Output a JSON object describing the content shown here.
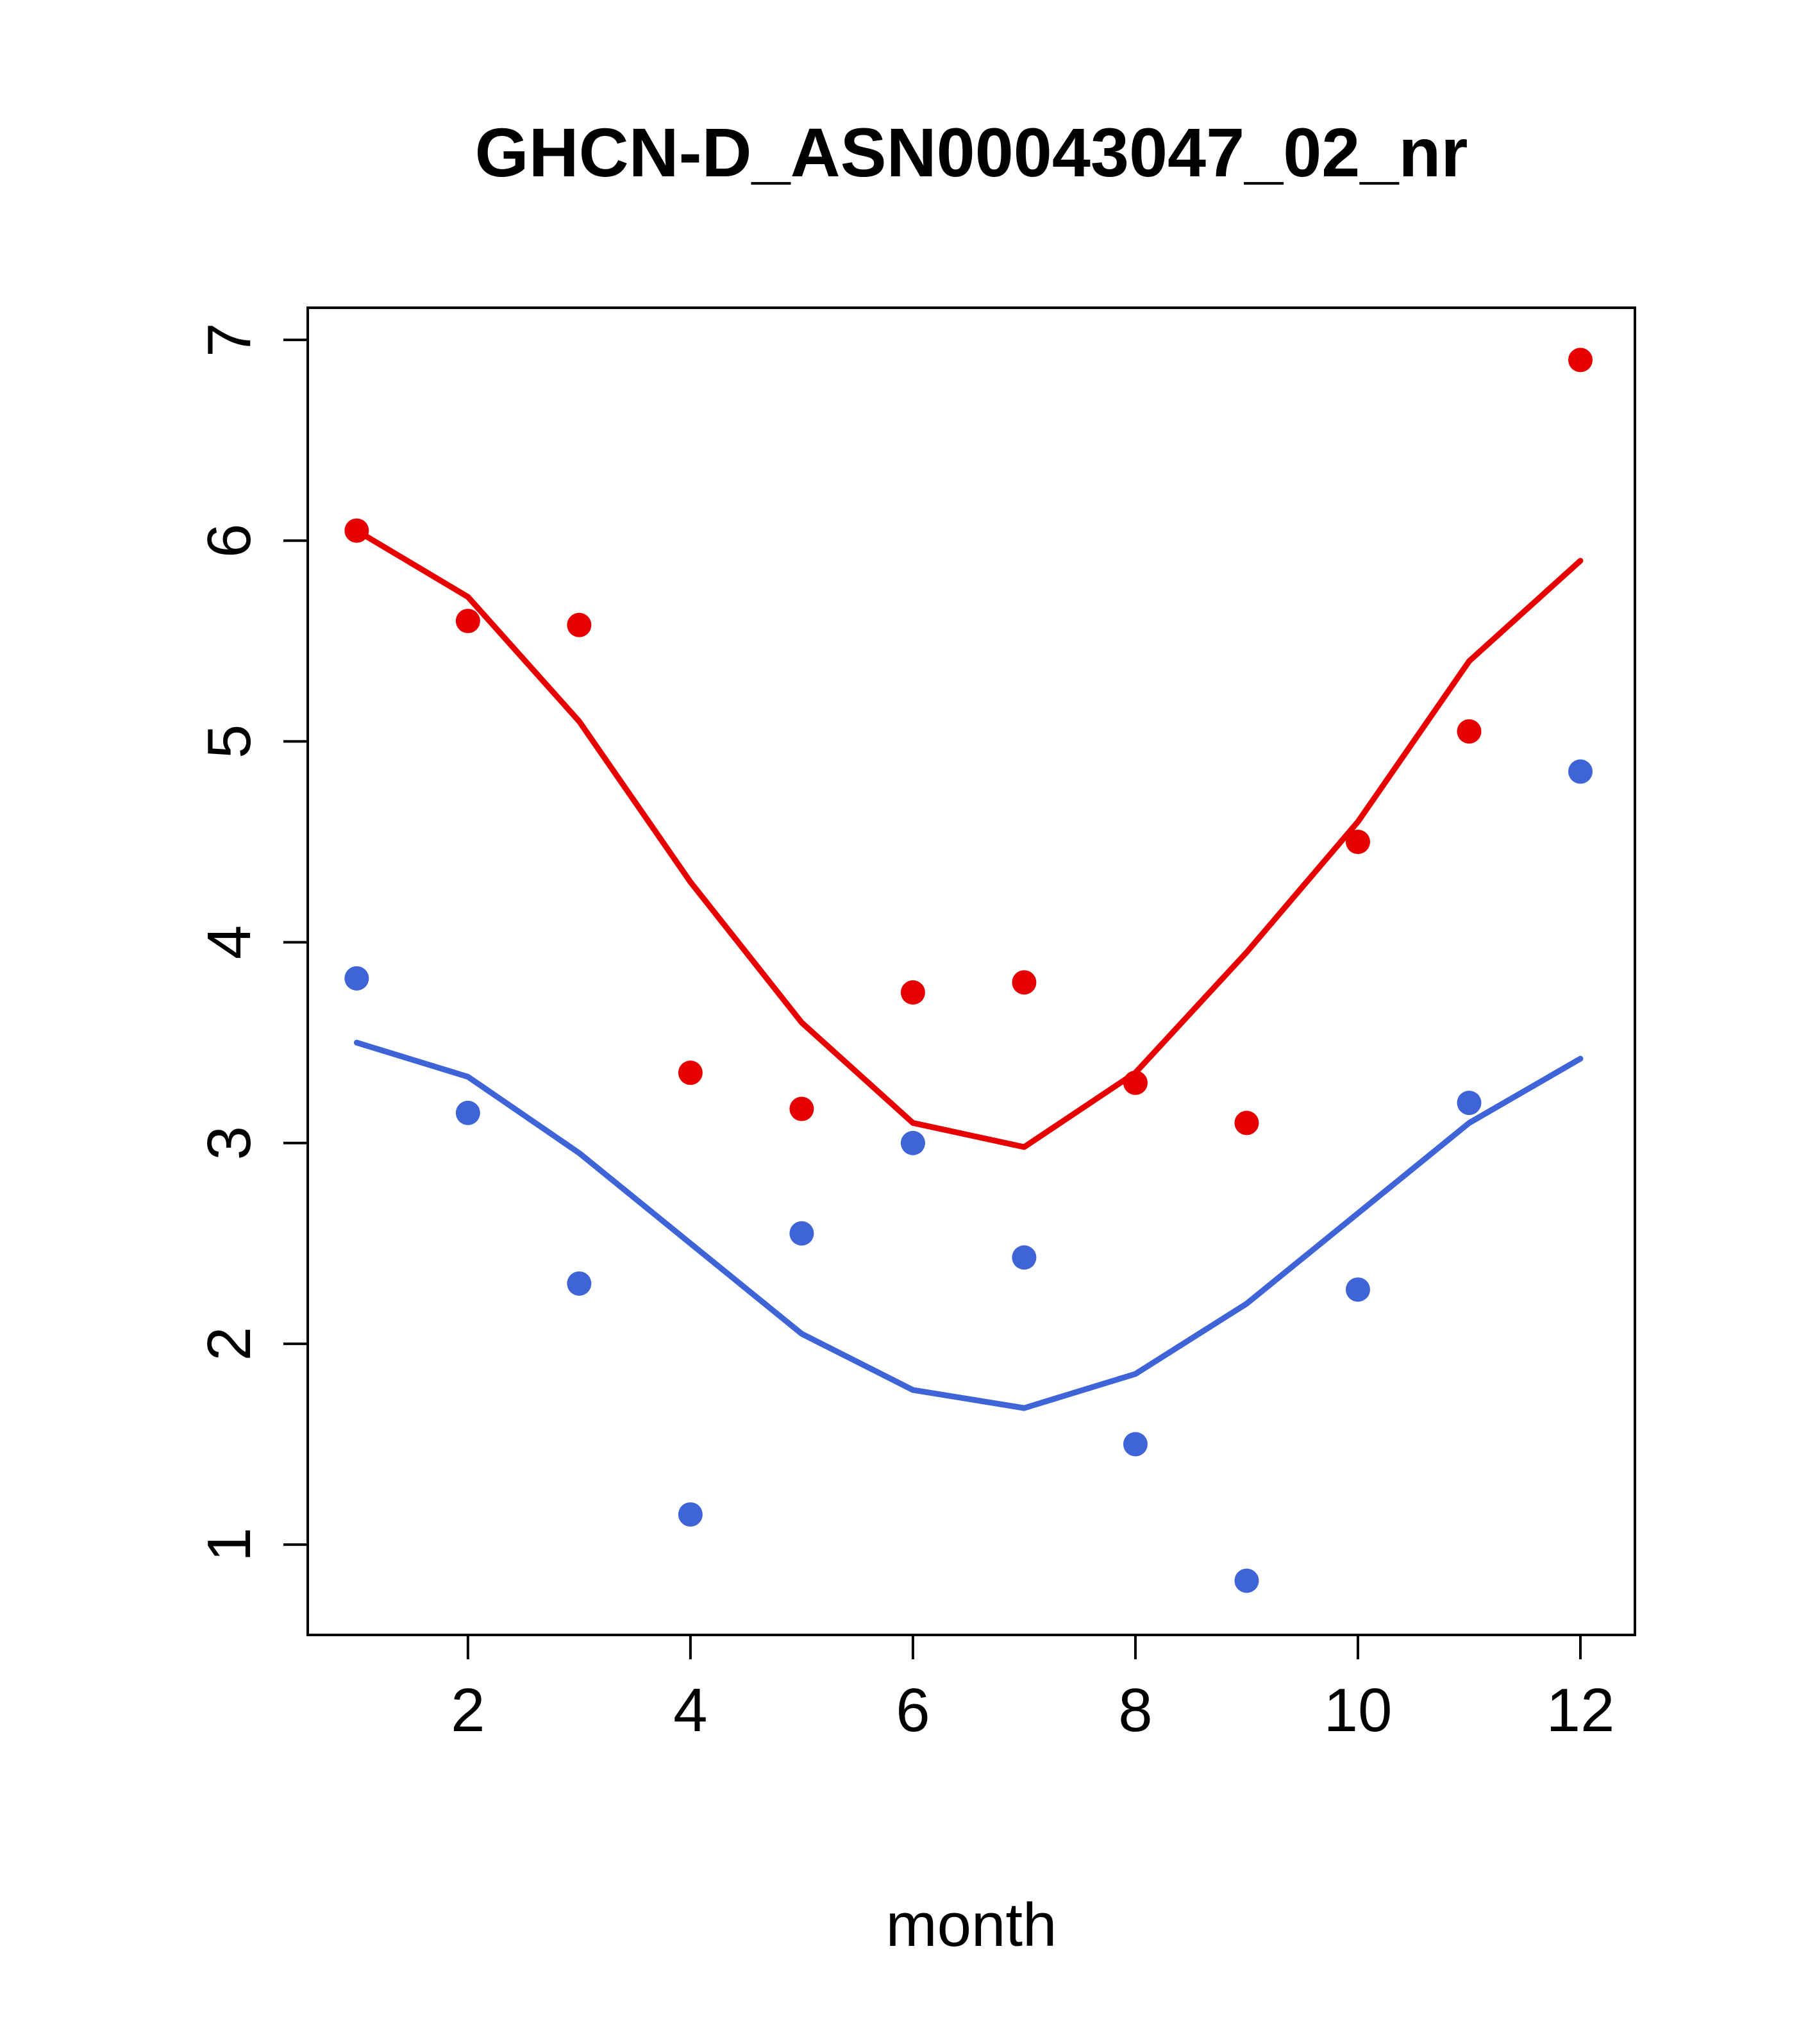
{
  "chart_data": {
    "type": "scatter",
    "title": "GHCN-D_ASN00043047_02_nr",
    "xlabel": "month",
    "ylabel": "",
    "x": [
      1,
      2,
      3,
      4,
      5,
      6,
      7,
      8,
      9,
      10,
      11,
      12
    ],
    "x_ticks": [
      2,
      4,
      6,
      8,
      10,
      12
    ],
    "y_ticks": [
      1,
      2,
      3,
      4,
      5,
      6,
      7
    ],
    "xlim": [
      0.56,
      12.49
    ],
    "ylim": [
      0.55,
      7.16
    ],
    "grid": false,
    "legend": "none",
    "series": [
      {
        "name": "red-points",
        "type": "points",
        "color": "#e60000",
        "values": [
          6.05,
          5.6,
          5.58,
          3.35,
          3.17,
          3.75,
          3.8,
          3.3,
          3.1,
          4.5,
          5.05,
          6.9
        ]
      },
      {
        "name": "red-smooth-line",
        "type": "line",
        "color": "#e60000",
        "values": [
          6.05,
          5.72,
          5.1,
          4.3,
          3.6,
          3.1,
          2.98,
          3.35,
          3.95,
          4.6,
          5.4,
          5.9
        ]
      },
      {
        "name": "blue-points",
        "type": "points",
        "color": "#3e64d8",
        "values": [
          3.82,
          3.15,
          2.3,
          1.15,
          2.55,
          3.0,
          2.43,
          1.5,
          0.82,
          2.27,
          3.2,
          4.85
        ]
      },
      {
        "name": "blue-smooth-line",
        "type": "line",
        "color": "#3e64d8",
        "values": [
          3.5,
          3.33,
          2.95,
          2.5,
          2.05,
          1.77,
          1.68,
          1.85,
          2.2,
          2.65,
          3.1,
          3.42
        ]
      }
    ],
    "style": {
      "axis_color": "#000000",
      "background": "#ffffff",
      "point_radius": 19,
      "line_width": 9
    }
  }
}
